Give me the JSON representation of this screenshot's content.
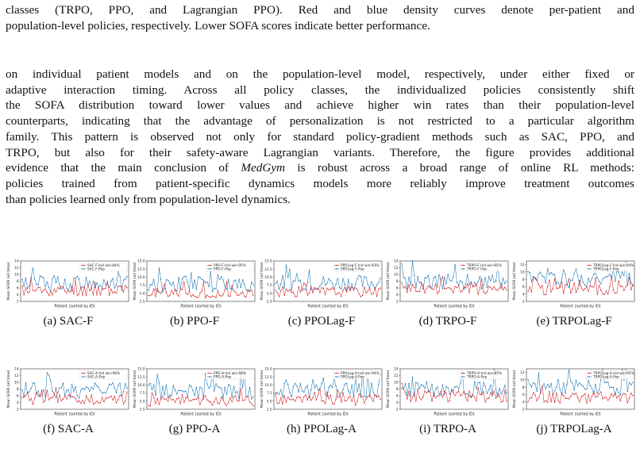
{
  "caption_top": {
    "lines": [
      "classes (TRPO, PPO, and Lagrangian PPO). Red and blue density curves denote per-patient and",
      "population-level policies, respectively. Lower SOFA scores indicate better performance."
    ]
  },
  "body_paragraph": {
    "lines": [
      [
        "on individual patient models and on the population-level model, respectively, under either fixed or"
      ],
      [
        "adaptive interaction timing. Across all policy classes, the individualized policies consistently shift"
      ],
      [
        "the SOFA distribution toward lower values and achieve higher win rates than their population-level"
      ],
      [
        "counterparts, indicating that the advantage of personalization is not restricted to a particular algorithm"
      ],
      [
        "family. This pattern is observed not only for standard policy-gradient methods such as SAC, PPO, and"
      ],
      [
        "TRPO, but also for their safety-aware Lagrangian variants. Therefore, the figure provides additional"
      ],
      [
        "evidence that the main conclusion of ",
        "MedGym",
        " is robust across a broad range of online RL methods:"
      ],
      [
        "policies trained from patient-specific dynamics models more reliably improve treatment outcomes"
      ],
      [
        "than policies learned only from population-level dynamics."
      ]
    ]
  },
  "colors": {
    "ind": "#d62728",
    "pop": "#1f77b4"
  },
  "chart_data": [
    {
      "type": "line",
      "caption": "(a) SAC-F",
      "xlabel": "Patient (sorted by ID)",
      "ylabel": "Mean SOFA (all time)",
      "ylim": [
        2,
        14
      ],
      "yticks": [
        "2",
        "4",
        "6",
        "8",
        "10",
        "12",
        "14"
      ],
      "legend": [
        "SAC-F-Ind  win:84%",
        "SAC-F-Pop"
      ],
      "series": [
        {
          "name": "SAC-F-Ind",
          "base": 5.2,
          "amp": 1.6,
          "seed": 11
        },
        {
          "name": "SAC-F-Pop",
          "base": 7.4,
          "amp": 2.4,
          "seed": 12
        }
      ]
    },
    {
      "type": "line",
      "caption": "(b) PPO-F",
      "xlabel": "Patient (sorted by ID)",
      "ylabel": "Mean SOFA (all time)",
      "ylim": [
        2.5,
        15
      ],
      "yticks": [
        "2.5",
        "5.0",
        "7.5",
        "10.0",
        "12.5",
        "15.0"
      ],
      "legend": [
        "PPO-F-Ind  win:95%",
        "PPO-F-Pop"
      ],
      "series": [
        {
          "name": "PPO-F-Ind",
          "base": 5.0,
          "amp": 1.5,
          "seed": 21
        },
        {
          "name": "PPO-F-Pop",
          "base": 7.8,
          "amp": 2.4,
          "seed": 22
        }
      ]
    },
    {
      "type": "line",
      "caption": "(c) PPOLag-F",
      "xlabel": "Patient (sorted by ID)",
      "ylabel": "Mean SOFA (all time)",
      "ylim": [
        2.5,
        15
      ],
      "yticks": [
        "2.5",
        "5.0",
        "7.5",
        "10.0",
        "12.5",
        "15.0"
      ],
      "legend": [
        "PPOLag-F-Ind  win:93%",
        "PPOLag-F-Pop"
      ],
      "series": [
        {
          "name": "PPOLag-F-Ind",
          "base": 5.5,
          "amp": 1.6,
          "seed": 31
        },
        {
          "name": "PPOLag-F-Pop",
          "base": 8.2,
          "amp": 2.4,
          "seed": 32
        }
      ]
    },
    {
      "type": "line",
      "caption": "(d) TRPO-F",
      "xlabel": "Patient (sorted by ID)",
      "ylabel": "Mean SOFA (all time)",
      "ylim": [
        2,
        14
      ],
      "yticks": [
        "2",
        "4",
        "6",
        "8",
        "10",
        "12",
        "14"
      ],
      "legend": [
        "TRPO-F-Ind  win:85%",
        "TRPO-F-Pop"
      ],
      "series": [
        {
          "name": "TRPO-F-Ind",
          "base": 5.8,
          "amp": 1.8,
          "seed": 41
        },
        {
          "name": "TRPO-F-Pop",
          "base": 7.8,
          "amp": 2.4,
          "seed": 42
        }
      ]
    },
    {
      "type": "line",
      "caption": "(e) TRPOLag-F",
      "xlabel": "Patient (sorted by ID)",
      "ylabel": "Mean SOFA (all time)",
      "ylim": [
        2,
        13
      ],
      "yticks": [
        "2",
        "4",
        "6",
        "8",
        "10",
        "12"
      ],
      "legend": [
        "TRPOLag-F-Ind  win:94%",
        "TRPOLag-F-Pop"
      ],
      "series": [
        {
          "name": "TRPOLag-F-Ind",
          "base": 5.2,
          "amp": 1.6,
          "seed": 51
        },
        {
          "name": "TRPOLag-F-Pop",
          "base": 8.0,
          "amp": 2.2,
          "seed": 52
        }
      ]
    },
    {
      "type": "line",
      "caption": "(f) SAC-A",
      "xlabel": "Patient (sorted by ID)",
      "ylabel": "Mean SOFA (all time)",
      "ylim": [
        2,
        14
      ],
      "yticks": [
        "2",
        "4",
        "6",
        "8",
        "10",
        "12",
        "14"
      ],
      "legend": [
        "SAC-A-Ind  win:98%",
        "SAC-A-Pop"
      ],
      "series": [
        {
          "name": "SAC-A-Ind",
          "base": 4.8,
          "amp": 1.5,
          "seed": 61
        },
        {
          "name": "SAC-A-Pop",
          "base": 7.6,
          "amp": 2.3,
          "seed": 62
        }
      ]
    },
    {
      "type": "line",
      "caption": "(g) PPO-A",
      "xlabel": "Patient (sorted by ID)",
      "ylabel": "Mean SOFA (all time)",
      "ylim": [
        2.5,
        15
      ],
      "yticks": [
        "2.5",
        "5.0",
        "7.5",
        "10.0",
        "12.5",
        "15.0"
      ],
      "legend": [
        "PPO-A-Ind  win:98%",
        "PPO-A-Pop"
      ],
      "series": [
        {
          "name": "PPO-A-Ind",
          "base": 5.0,
          "amp": 1.5,
          "seed": 71
        },
        {
          "name": "PPO-A-Pop",
          "base": 8.0,
          "amp": 2.4,
          "seed": 72
        }
      ]
    },
    {
      "type": "line",
      "caption": "(h) PPOLag-A",
      "xlabel": "Patient (sorted by ID)",
      "ylabel": "Mean SOFA (all time)",
      "ylim": [
        2.5,
        15
      ],
      "yticks": [
        "2.5",
        "5.0",
        "7.5",
        "10.0",
        "12.5",
        "15.0"
      ],
      "legend": [
        "PPOLag-A-Ind  win:94%",
        "PPOLag-A-Pop"
      ],
      "series": [
        {
          "name": "PPOLag-A-Ind",
          "base": 5.4,
          "amp": 1.6,
          "seed": 81
        },
        {
          "name": "PPOLag-A-Pop",
          "base": 8.3,
          "amp": 2.4,
          "seed": 82
        }
      ]
    },
    {
      "type": "line",
      "caption": "(i) TRPO-A",
      "xlabel": "Patient (sorted by ID)",
      "ylabel": "Mean SOFA (all time)",
      "ylim": [
        2,
        14
      ],
      "yticks": [
        "2",
        "4",
        "6",
        "8",
        "10",
        "12",
        "14"
      ],
      "legend": [
        "TRPO-A-Ind  win:85%",
        "TRPO-A-Pop"
      ],
      "series": [
        {
          "name": "TRPO-A-Ind",
          "base": 5.8,
          "amp": 1.8,
          "seed": 91
        },
        {
          "name": "TRPO-A-Pop",
          "base": 7.8,
          "amp": 2.4,
          "seed": 92
        }
      ]
    },
    {
      "type": "line",
      "caption": "(j) TRPOLag-A",
      "xlabel": "Patient (sorted by ID)",
      "ylabel": "Mean SOFA (all time)",
      "ylim": [
        2,
        13
      ],
      "yticks": [
        "2",
        "4",
        "6",
        "8",
        "10",
        "12"
      ],
      "legend": [
        "TRPOLag-A-Ind  win:95%",
        "TRPOLag-A-Pop"
      ],
      "series": [
        {
          "name": "TRPOLag-A-Ind",
          "base": 5.2,
          "amp": 1.6,
          "seed": 101
        },
        {
          "name": "TRPOLag-A-Pop",
          "base": 8.0,
          "amp": 2.2,
          "seed": 102
        }
      ]
    }
  ]
}
